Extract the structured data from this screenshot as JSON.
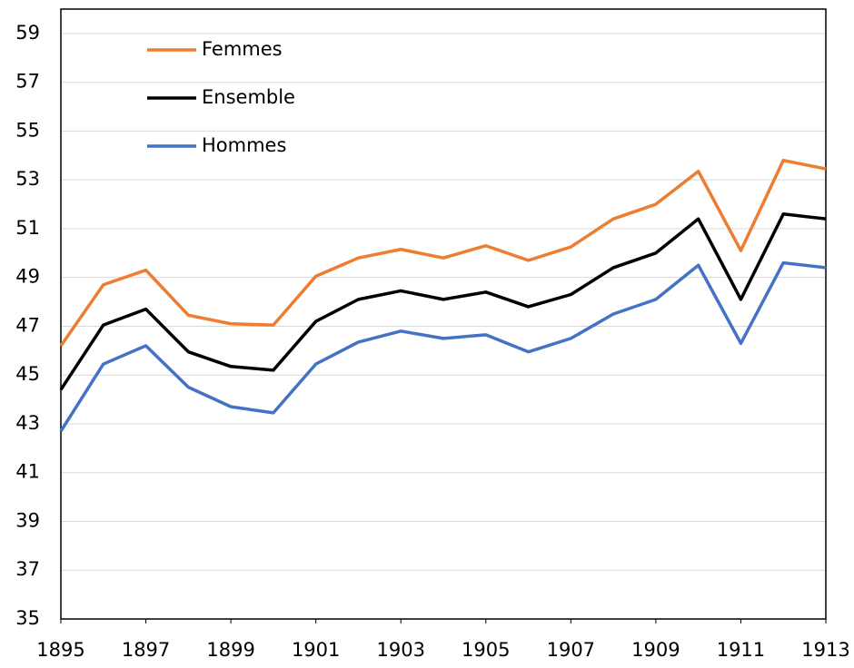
{
  "chart_data": {
    "type": "line",
    "x": [
      1895,
      1896,
      1897,
      1898,
      1899,
      1900,
      1901,
      1902,
      1903,
      1904,
      1905,
      1906,
      1907,
      1908,
      1909,
      1910,
      1911,
      1912,
      1913
    ],
    "series": [
      {
        "name": "Femmes",
        "color": "#ed7d31",
        "values": [
          46.2,
          48.7,
          49.3,
          47.45,
          47.1,
          47.05,
          49.05,
          49.8,
          50.15,
          49.8,
          50.3,
          49.7,
          50.25,
          51.4,
          52.0,
          53.35,
          50.1,
          53.8,
          53.45
        ]
      },
      {
        "name": "Ensemble",
        "color": "#000000",
        "values": [
          44.4,
          47.05,
          47.7,
          45.95,
          45.35,
          45.2,
          47.2,
          48.1,
          48.45,
          48.1,
          48.4,
          47.8,
          48.3,
          49.4,
          50.0,
          51.4,
          48.1,
          51.6,
          51.4
        ]
      },
      {
        "name": "Hommes",
        "color": "#4472c4",
        "values": [
          42.7,
          45.45,
          46.2,
          44.5,
          43.7,
          43.45,
          45.45,
          46.35,
          46.8,
          46.5,
          46.65,
          45.95,
          46.5,
          47.5,
          48.1,
          49.5,
          46.3,
          49.6,
          49.4
        ]
      }
    ],
    "xlim": [
      1895,
      1913
    ],
    "xticks": [
      1895,
      1897,
      1899,
      1901,
      1903,
      1905,
      1907,
      1909,
      1911,
      1913
    ],
    "ylim": [
      35,
      60
    ],
    "yticks": [
      35,
      37,
      39,
      41,
      43,
      45,
      47,
      49,
      51,
      53,
      55,
      57,
      59
    ],
    "grid": true,
    "legend": "upper-left"
  }
}
